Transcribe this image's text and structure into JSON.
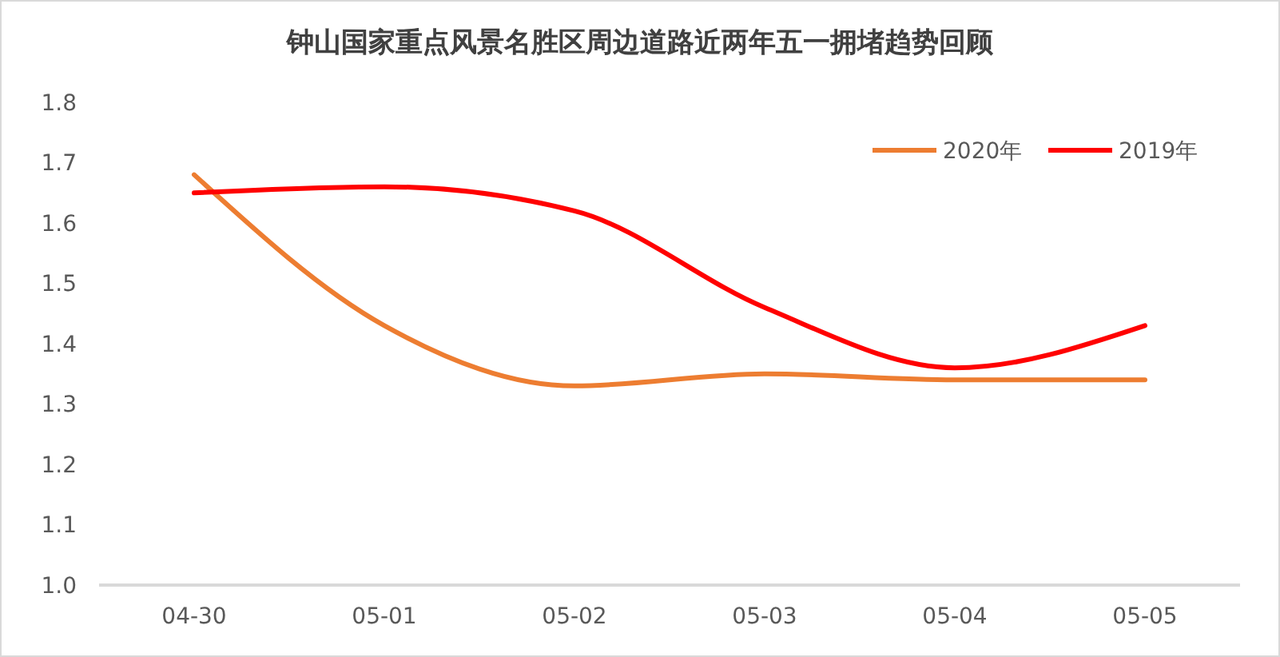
{
  "chart_data": {
    "type": "line",
    "title": "钟山国家重点风景名胜区周边道路近两年五一拥堵趋势回顾",
    "categories": [
      "04-30",
      "05-01",
      "05-02",
      "05-03",
      "05-04",
      "05-05"
    ],
    "series": [
      {
        "name": "2020年",
        "color": "#ed7d31",
        "values": [
          1.68,
          1.43,
          1.33,
          1.35,
          1.34,
          1.34
        ]
      },
      {
        "name": "2019年",
        "color": "#ff0000",
        "values": [
          1.65,
          1.66,
          1.62,
          1.46,
          1.36,
          1.43
        ]
      }
    ],
    "ylim": [
      1.0,
      1.8
    ],
    "yticks": [
      {
        "value": 1.0,
        "label": "1.0"
      },
      1.1,
      1.2,
      1.3,
      1.4,
      1.5,
      1.6,
      1.7,
      1.8
    ],
    "grid": false,
    "legend": "top right",
    "marker": "none",
    "line_style": "solid"
  }
}
